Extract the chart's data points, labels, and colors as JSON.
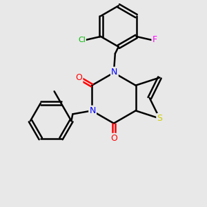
{
  "background_color": "#e8e8e8",
  "bond_color": "#000000",
  "atom_colors": {
    "N": "#0000ff",
    "O": "#ff0000",
    "S": "#cccc00",
    "Cl": "#00bb00",
    "F": "#ff00ff",
    "C": "#000000"
  },
  "figsize": [
    3.0,
    3.0
  ],
  "dpi": 100
}
